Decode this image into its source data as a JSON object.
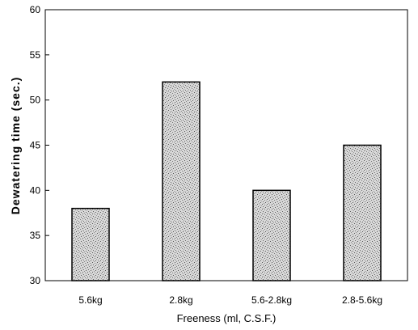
{
  "chart_data": {
    "type": "bar",
    "title": "",
    "xlabel": "Freeness (ml, C.S.F.)",
    "ylabel": "Dewatering time (sec.)",
    "categories": [
      "5.6kg",
      "2.8kg",
      "5.6-2.8kg",
      "2.8-5.6kg"
    ],
    "values": [
      38,
      52,
      40,
      45
    ],
    "ylim": [
      30,
      60
    ],
    "yticks": [
      30,
      35,
      40,
      45,
      50,
      55,
      60
    ],
    "grid": false,
    "legend": "none",
    "colors": {
      "bar_fill": "#c8c8c8",
      "bar_stroke": "#000000",
      "axis": "#000000"
    }
  }
}
